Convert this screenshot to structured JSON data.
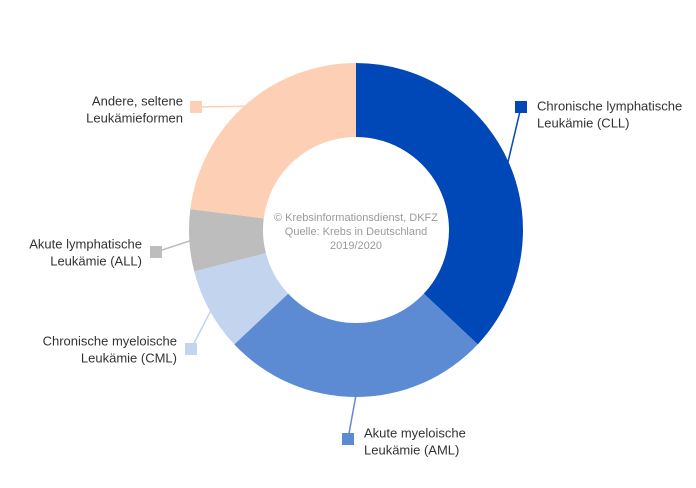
{
  "chart_data": {
    "type": "pie",
    "donut": true,
    "categories": [
      "Chronische lymphatische Leukämie (CLL)",
      "Akute myeloische Leukämie (AML)",
      "Chronische myeloische Leukämie (CML)",
      "Akute lymphatische Leukämie (ALL)",
      "Andere, seltene Leukämieformen"
    ],
    "values": [
      37,
      26,
      8,
      6,
      23
    ],
    "colors": [
      "#0047b8",
      "#5c8ad3",
      "#c3d4ef",
      "#bdbdbd",
      "#fdd0b5"
    ],
    "legend": [
      {
        "line1": "Chronische lymphatische",
        "line2": "Leukämie (CLL)"
      },
      {
        "line1": "Akute myeloische",
        "line2": "Leukämie (AML)"
      },
      {
        "line1": "Chronische myeloische",
        "line2": "Leukämie (CML)"
      },
      {
        "line1": "Akute lymphatische",
        "line2": "Leukämie (ALL)"
      },
      {
        "line1": "Andere, seltene",
        "line2": "Leukämieformen"
      }
    ],
    "center_text": [
      "© Krebsinformationsdienst, DKFZ",
      "Quelle: Krebs in Deutschland",
      "2019/2020"
    ],
    "legend_placement": "around",
    "marker_shape": "square"
  }
}
